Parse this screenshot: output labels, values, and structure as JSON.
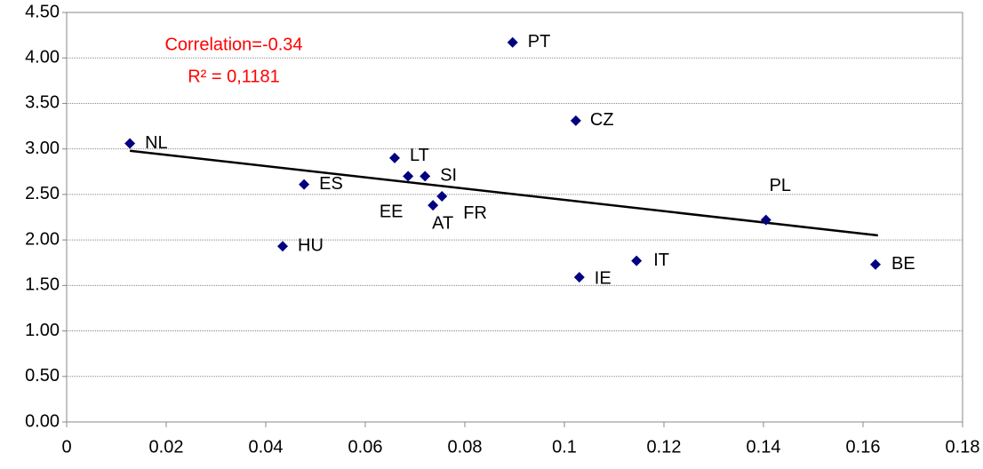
{
  "chart_data": {
    "type": "scatter",
    "categories": [
      "NL",
      "PT",
      "CZ",
      "LT",
      "EE",
      "SI",
      "ES",
      "FR",
      "AT",
      "PL",
      "HU",
      "IT",
      "BE",
      "IE"
    ],
    "x": [
      0.0127,
      0.0896,
      0.1023,
      0.0659,
      0.0686,
      0.072,
      0.0477,
      0.0754,
      0.0736,
      0.1405,
      0.0434,
      0.1145,
      0.1625,
      0.103
    ],
    "values": [
      3.06,
      4.17,
      3.31,
      2.9,
      2.7,
      2.7,
      2.61,
      2.48,
      2.38,
      2.22,
      1.93,
      1.77,
      1.73,
      1.59
    ],
    "color": "#000080",
    "trendline": {
      "x": [
        0.0127,
        0.163
      ],
      "y": [
        2.98,
        2.05
      ],
      "color": "#000000"
    },
    "annotations": [
      "Correlation=-0.34",
      "R² = 0,1181"
    ],
    "annotation_color": "#ff0000",
    "xlim": [
      0,
      0.18
    ],
    "xticks": [
      0,
      0.02,
      0.04,
      0.06,
      0.08,
      0.1,
      0.12,
      0.14,
      0.16,
      0.18
    ],
    "ylim": [
      0,
      4.5
    ],
    "yticks": [
      {
        "value": 0,
        "label": "0.00"
      },
      {
        "value": 0.5,
        "label": "0.50"
      },
      {
        "value": 1,
        "label": "1.00"
      },
      {
        "value": 1.5,
        "label": "1.50"
      },
      {
        "value": 2,
        "label": "2.00"
      },
      {
        "value": 2.5,
        "label": "2.50"
      },
      {
        "value": 3,
        "label": "3.00"
      },
      {
        "value": 3.5,
        "label": "3.50"
      },
      {
        "value": 4,
        "label": "4.00"
      },
      {
        "value": 4.5,
        "label": "4.50"
      }
    ],
    "grid": true
  }
}
